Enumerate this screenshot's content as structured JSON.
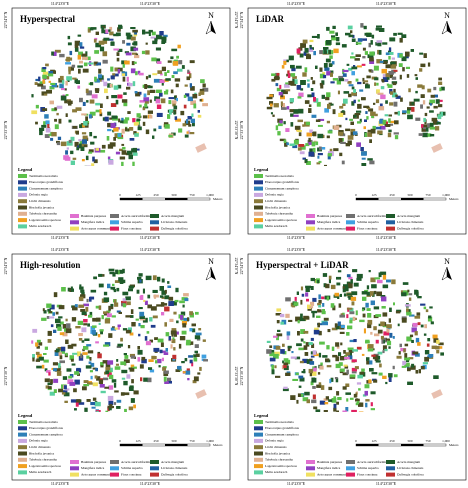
{
  "panels": [
    {
      "title": "Hyperspectral"
    },
    {
      "title": "LiDAR"
    },
    {
      "title": "High-resolution"
    },
    {
      "title": "Hyperspectral + LiDAR"
    }
  ],
  "north": "N",
  "coords": {
    "top": [
      "114°23'0\"E",
      "114°23'30\"E"
    ],
    "left": [
      "22°34'0\"N",
      "22°33'30\"N"
    ]
  },
  "scale": {
    "ticks": [
      "0",
      "125",
      "250",
      "500",
      "750",
      "1,000"
    ],
    "unit": "Meters"
  },
  "legend": {
    "title": "Legend",
    "items": [
      {
        "name": "Terminalia neotaliala",
        "color": "#5cc04a"
      },
      {
        "name": "Elaeocarpus grandiflorus",
        "color": "#1f3c8c"
      },
      {
        "name": "Cinnamomum camphora",
        "color": "#2d7fb8"
      },
      {
        "name": "Delonix regia",
        "color": "#c9a8e0"
      },
      {
        "name": "Litchi chinensis",
        "color": "#8a7a3a"
      },
      {
        "name": "Bischofia javanica",
        "color": "#4a4a20"
      },
      {
        "name": "Tabebuia chrysantha",
        "color": "#e0b090"
      },
      {
        "name": "Lagerstroemia speciosa",
        "color": "#f0a020"
      },
      {
        "name": "Melia azedarach",
        "color": "#5ad0a0"
      },
      {
        "name": "Bauhinia purpurea",
        "color": "#e070d0"
      },
      {
        "name": "Mangifera indica",
        "color": "#9040c0"
      },
      {
        "name": "Artocarpus communis",
        "color": "#f0e060"
      },
      {
        "name": "Acacia auriculiformis",
        "color": "#707070"
      },
      {
        "name": "Schima superba",
        "color": "#40a0e0"
      },
      {
        "name": "Ficus concinna",
        "color": "#e02060"
      },
      {
        "name": "Acacia mangium",
        "color": "#1e5a2a"
      },
      {
        "name": "Livistona chinensis",
        "color": "#2060a0"
      },
      {
        "name": "Dalbergia odorifera",
        "color": "#c03030"
      }
    ]
  }
}
